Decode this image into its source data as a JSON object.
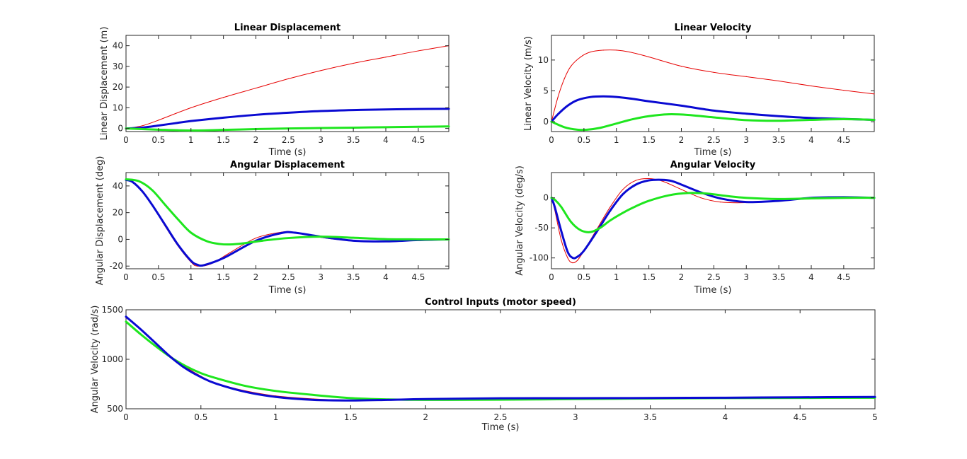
{
  "figure": {
    "background": "#ffffff",
    "line_colors": {
      "red": "#e60000",
      "blue": "#0a0ad2",
      "green": "#1ee61e"
    }
  },
  "chart_data": [
    {
      "id": "lin_disp",
      "type": "line",
      "title": "Linear Displacement",
      "xlabel": "Time (s)",
      "ylabel": "Linear Displacement (m)",
      "xlim": [
        0,
        4.97
      ],
      "ylim": [
        -1.5,
        45
      ],
      "xticks": [
        0,
        0.5,
        1,
        1.5,
        2,
        2.5,
        3,
        3.5,
        4,
        4.5
      ],
      "xtick_labels": [
        "0",
        "0.5",
        "1",
        "1.5",
        "2",
        "2.5",
        "3",
        "3.5",
        "4",
        "4.5"
      ],
      "yticks": [
        0,
        10,
        20,
        30,
        40
      ],
      "ytick_labels": [
        "0",
        "10",
        "20",
        "30",
        "40"
      ],
      "series": [
        {
          "color": "#e60000",
          "width": 1,
          "x": [
            0,
            0.25,
            0.5,
            1,
            1.5,
            2,
            2.5,
            3,
            3.5,
            4,
            4.5,
            4.97
          ],
          "y": [
            0,
            1.3,
            4,
            10,
            15,
            19.5,
            24,
            28,
            31.5,
            34.5,
            37.5,
            40
          ]
        },
        {
          "color": "#0a0ad2",
          "width": 3,
          "x": [
            0,
            0.25,
            0.5,
            0.75,
            1,
            1.5,
            2,
            2.5,
            3,
            3.5,
            4,
            4.5,
            4.97
          ],
          "y": [
            0,
            0.4,
            1.4,
            2.5,
            3.6,
            5.2,
            6.6,
            7.6,
            8.4,
            8.9,
            9.2,
            9.4,
            9.5
          ]
        },
        {
          "color": "#1ee61e",
          "width": 3,
          "x": [
            0,
            0.5,
            1,
            1.5,
            2,
            2.5,
            3,
            3.5,
            4,
            4.5,
            4.97
          ],
          "y": [
            0,
            -0.6,
            -1,
            -0.7,
            -0.3,
            0,
            0.2,
            0.4,
            0.6,
            0.8,
            1
          ]
        }
      ]
    },
    {
      "id": "lin_vel",
      "type": "line",
      "title": "Linear Velocity",
      "xlabel": "Time (s)",
      "ylabel": "Linear Velocity (m/s)",
      "xlim": [
        0,
        4.97
      ],
      "ylim": [
        -1.6,
        14
      ],
      "xticks": [
        0,
        0.5,
        1,
        1.5,
        2,
        2.5,
        3,
        3.5,
        4,
        4.5
      ],
      "xtick_labels": [
        "0",
        "0.5",
        "1",
        "1.5",
        "2",
        "2.5",
        "3",
        "3.5",
        "4",
        "4.5"
      ],
      "yticks": [
        0,
        5,
        10
      ],
      "ytick_labels": [
        "0",
        "5",
        "10"
      ],
      "series": [
        {
          "color": "#e60000",
          "width": 1,
          "x": [
            0,
            0.1,
            0.2,
            0.3,
            0.45,
            0.6,
            0.8,
            1,
            1.2,
            1.5,
            2,
            2.5,
            3,
            3.5,
            4,
            4.5,
            4.97
          ],
          "y": [
            0,
            4,
            7,
            9,
            10.5,
            11.3,
            11.6,
            11.6,
            11.3,
            10.5,
            9,
            8,
            7.3,
            6.6,
            5.8,
            5.1,
            4.5
          ]
        },
        {
          "color": "#0a0ad2",
          "width": 3,
          "x": [
            0,
            0.1,
            0.25,
            0.4,
            0.6,
            0.8,
            1,
            1.25,
            1.5,
            2,
            2.5,
            3,
            3.5,
            4,
            4.5,
            4.97
          ],
          "y": [
            0,
            1.2,
            2.6,
            3.5,
            4,
            4.1,
            4,
            3.7,
            3.3,
            2.6,
            1.8,
            1.3,
            0.9,
            0.6,
            0.45,
            0.3
          ]
        },
        {
          "color": "#1ee61e",
          "width": 3,
          "x": [
            0,
            0.2,
            0.4,
            0.55,
            0.75,
            1,
            1.25,
            1.5,
            1.8,
            2.1,
            2.5,
            3,
            3.5,
            4,
            4.5,
            4.97
          ],
          "y": [
            0,
            -0.9,
            -1.3,
            -1.3,
            -1,
            -0.3,
            0.4,
            0.9,
            1.2,
            1.1,
            0.7,
            0.25,
            0.15,
            0.3,
            0.4,
            0.3
          ]
        }
      ]
    },
    {
      "id": "ang_disp",
      "type": "line",
      "title": "Angular Displacement",
      "xlabel": "Time (s)",
      "ylabel": "Angular Displacement (deg)",
      "xlim": [
        0,
        4.97
      ],
      "ylim": [
        -22,
        50
      ],
      "xticks": [
        0,
        0.5,
        1,
        1.5,
        2,
        2.5,
        3,
        3.5,
        4,
        4.5
      ],
      "xtick_labels": [
        "0",
        "0.5",
        "1",
        "1.5",
        "2",
        "2.5",
        "3",
        "3.5",
        "4",
        "4.5"
      ],
      "yticks": [
        -20,
        0,
        20,
        40
      ],
      "ytick_labels": [
        "-20",
        "0",
        "20",
        "40"
      ],
      "series": [
        {
          "color": "#e60000",
          "width": 1,
          "x": [
            0,
            0.1,
            0.25,
            0.4,
            0.6,
            0.8,
            1,
            1.1,
            1.3,
            1.6,
            2,
            2.4,
            2.6,
            3,
            3.5,
            4,
            4.5,
            4.97
          ],
          "y": [
            45,
            43.5,
            36,
            26,
            10,
            -5,
            -17,
            -20,
            -18.5,
            -10,
            1,
            5.5,
            5.3,
            1.5,
            -1.2,
            -1.2,
            -0.3,
            0
          ]
        },
        {
          "color": "#0a0ad2",
          "width": 3,
          "x": [
            0,
            0.1,
            0.25,
            0.4,
            0.6,
            0.8,
            1,
            1.1,
            1.2,
            1.5,
            2,
            2.4,
            2.6,
            3,
            3.5,
            4,
            4.5,
            4.97
          ],
          "y": [
            44.5,
            43,
            36,
            26,
            11,
            -4,
            -16,
            -19,
            -19.3,
            -14,
            -1,
            4.8,
            5,
            2,
            -1,
            -1.5,
            -0.5,
            0
          ]
        },
        {
          "color": "#1ee61e",
          "width": 3,
          "x": [
            0,
            0.2,
            0.4,
            0.6,
            0.8,
            1,
            1.25,
            1.45,
            1.6,
            1.8,
            2.1,
            2.5,
            3,
            3.5,
            4,
            4.5,
            4.97
          ],
          "y": [
            45,
            43.5,
            37,
            26,
            15,
            5,
            -1.5,
            -3.5,
            -3.8,
            -3,
            -1,
            1,
            2,
            1.2,
            0.2,
            0,
            0
          ]
        }
      ]
    },
    {
      "id": "ang_vel",
      "type": "line",
      "title": "Angular Velocity",
      "xlabel": "Time (s)",
      "ylabel": "Angular Velocity (deg/s)",
      "xlim": [
        0,
        4.97
      ],
      "ylim": [
        -118,
        42
      ],
      "xticks": [
        0,
        0.5,
        1,
        1.5,
        2,
        2.5,
        3,
        3.5,
        4,
        4.5
      ],
      "xtick_labels": [
        "0",
        "0.5",
        "1",
        "1.5",
        "2",
        "2.5",
        "3",
        "3.5",
        "4",
        "4.5"
      ],
      "yticks": [
        -100,
        -50,
        0
      ],
      "ytick_labels": [
        "-100",
        "-50",
        "0"
      ],
      "series": [
        {
          "color": "#e60000",
          "width": 1,
          "x": [
            0,
            0.05,
            0.15,
            0.25,
            0.32,
            0.4,
            0.5,
            0.7,
            0.9,
            1.1,
            1.3,
            1.5,
            1.7,
            2,
            2.3,
            2.6,
            3,
            3.5,
            4,
            4.5,
            4.97
          ],
          "y": [
            0,
            -20,
            -70,
            -100,
            -108,
            -104,
            -88,
            -52,
            -16,
            14,
            29,
            32,
            28,
            14,
            0,
            -7,
            -8,
            -4,
            0,
            1,
            0
          ]
        },
        {
          "color": "#0a0ad2",
          "width": 3,
          "x": [
            0,
            0.05,
            0.15,
            0.25,
            0.33,
            0.4,
            0.5,
            0.7,
            0.9,
            1.1,
            1.3,
            1.5,
            1.7,
            1.85,
            2,
            2.3,
            2.6,
            3,
            3.5,
            4,
            4.5,
            4.97
          ],
          "y": [
            0,
            -15,
            -55,
            -90,
            -100,
            -98,
            -88,
            -56,
            -22,
            6,
            22,
            29,
            30,
            28,
            22,
            9,
            -1,
            -7,
            -5,
            0,
            1,
            0
          ]
        },
        {
          "color": "#1ee61e",
          "width": 3,
          "x": [
            0,
            0.05,
            0.15,
            0.3,
            0.45,
            0.6,
            0.75,
            0.9,
            1.1,
            1.3,
            1.5,
            1.8,
            2.1,
            2.4,
            2.7,
            3,
            3.5,
            4,
            4.5,
            4.97
          ],
          "y": [
            0,
            -3,
            -15,
            -40,
            -54,
            -57,
            -50,
            -38,
            -25,
            -14,
            -5,
            4,
            8,
            7,
            3,
            0,
            -2,
            -1,
            0,
            0
          ]
        }
      ]
    },
    {
      "id": "control",
      "type": "line",
      "title": "Control Inputs (motor speed)",
      "xlabel": "Time (s)",
      "ylabel": "Angular Velocity (rad/s)",
      "xlim": [
        0,
        5
      ],
      "ylim": [
        500,
        1500
      ],
      "xticks": [
        0,
        0.5,
        1,
        1.5,
        2,
        2.5,
        3,
        3.5,
        4,
        4.5,
        5
      ],
      "xtick_labels": [
        "0",
        "0.5",
        "1",
        "1.5",
        "2",
        "2.5",
        "3",
        "3.5",
        "4",
        "4.5",
        "5"
      ],
      "yticks": [
        500,
        1000,
        1500
      ],
      "ytick_labels": [
        "500",
        "1000",
        "1500"
      ],
      "series": [
        {
          "color": "#e60000",
          "width": 1,
          "x": [
            0,
            0.1,
            0.2,
            0.3,
            0.4,
            0.5,
            0.6,
            0.8,
            1,
            1.25,
            1.5,
            1.75,
            2,
            2.5,
            3,
            3.5,
            4,
            4.5,
            5
          ],
          "y": [
            1420,
            1300,
            1160,
            1030,
            920,
            830,
            760,
            680,
            630,
            600,
            588,
            590,
            598,
            605,
            605,
            607,
            610,
            612,
            614
          ]
        },
        {
          "color": "#1ee61e",
          "width": 3,
          "x": [
            0,
            0.1,
            0.2,
            0.3,
            0.4,
            0.5,
            0.6,
            0.8,
            1,
            1.25,
            1.5,
            1.75,
            2,
            2.5,
            3,
            3.5,
            4,
            4.5,
            5
          ],
          "y": [
            1380,
            1250,
            1130,
            1020,
            930,
            860,
            810,
            730,
            680,
            640,
            608,
            595,
            590,
            592,
            598,
            604,
            608,
            610,
            612
          ]
        },
        {
          "color": "#0a0ad2",
          "width": 3,
          "x": [
            0,
            0.1,
            0.2,
            0.3,
            0.4,
            0.5,
            0.6,
            0.8,
            1,
            1.25,
            1.5,
            1.75,
            2,
            2.5,
            3,
            3.5,
            4,
            4.5,
            5
          ],
          "y": [
            1430,
            1300,
            1160,
            1020,
            905,
            820,
            755,
            670,
            620,
            590,
            584,
            590,
            598,
            606,
            607,
            609,
            612,
            616,
            620
          ]
        }
      ]
    }
  ]
}
